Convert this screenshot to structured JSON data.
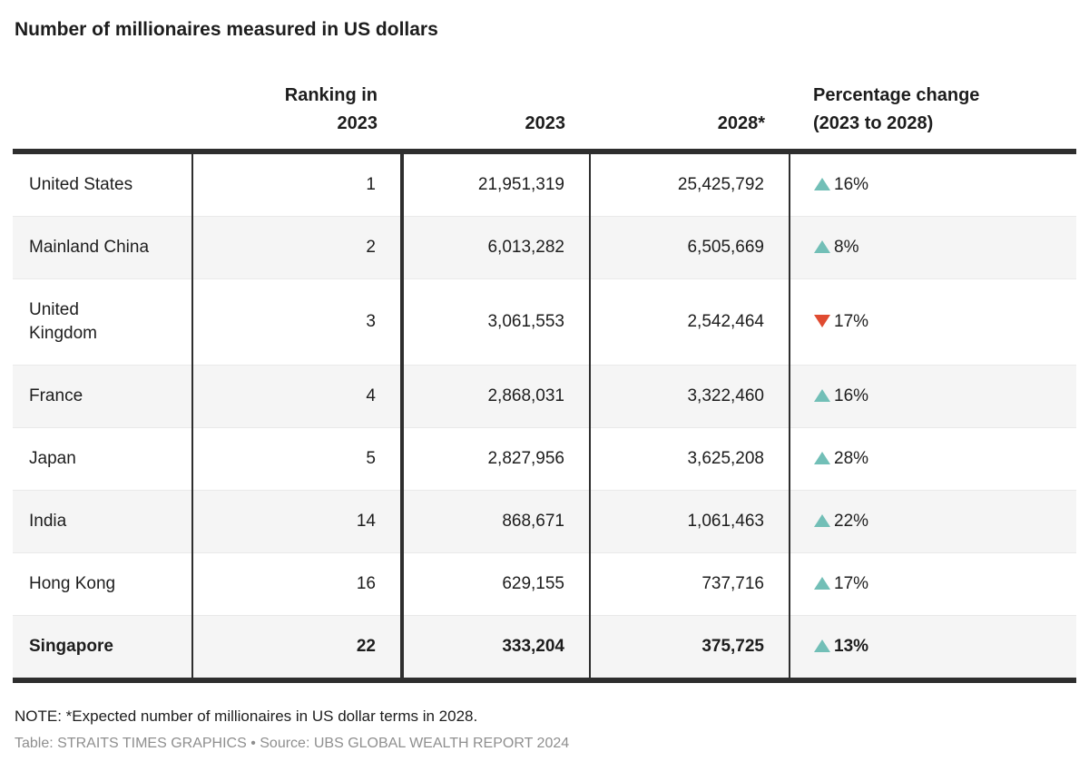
{
  "title": "Number of millionaires measured in US dollars",
  "colors": {
    "increase": "#72bfb7",
    "decrease": "#e04b31",
    "row_alt_background": "#f5f5f5",
    "border_dark": "#2e2e2e",
    "text": "#1d1d1d",
    "credit_text": "#8f8f8f"
  },
  "chart_data": {
    "type": "table",
    "title": "Number of millionaires measured in US dollars",
    "columns": [
      {
        "label": "",
        "align": "left"
      },
      {
        "label": "Ranking in\n2023",
        "align": "right"
      },
      {
        "label": "2023",
        "align": "right"
      },
      {
        "label": "2028*",
        "align": "right"
      },
      {
        "label": "Percentage change\n(2023 to 2028)",
        "align": "left"
      }
    ],
    "rows": [
      {
        "country": "United States",
        "ranking_2023": "1",
        "millionaires_2023": "21,951,319",
        "millionaires_2028": "25,425,792",
        "percent_change": "16%",
        "direction": "up",
        "highlight": false
      },
      {
        "country": "Mainland China",
        "ranking_2023": "2",
        "millionaires_2023": "6,013,282",
        "millionaires_2028": "6,505,669",
        "percent_change": "8%",
        "direction": "up",
        "highlight": false
      },
      {
        "country": "United Kingdom",
        "country_display": "United\nKingdom",
        "ranking_2023": "3",
        "millionaires_2023": "3,061,553",
        "millionaires_2028": "2,542,464",
        "percent_change": "17%",
        "direction": "down",
        "highlight": false
      },
      {
        "country": "France",
        "ranking_2023": "4",
        "millionaires_2023": "2,868,031",
        "millionaires_2028": "3,322,460",
        "percent_change": "16%",
        "direction": "up",
        "highlight": false
      },
      {
        "country": "Japan",
        "ranking_2023": "5",
        "millionaires_2023": "2,827,956",
        "millionaires_2028": "3,625,208",
        "percent_change": "28%",
        "direction": "up",
        "highlight": false
      },
      {
        "country": "India",
        "ranking_2023": "14",
        "millionaires_2023": "868,671",
        "millionaires_2028": "1,061,463",
        "percent_change": "22%",
        "direction": "up",
        "highlight": false
      },
      {
        "country": "Hong Kong",
        "ranking_2023": "16",
        "millionaires_2023": "629,155",
        "millionaires_2028": "737,716",
        "percent_change": "17%",
        "direction": "up",
        "highlight": false
      },
      {
        "country": "Singapore",
        "ranking_2023": "22",
        "millionaires_2023": "333,204",
        "millionaires_2028": "375,725",
        "percent_change": "13%",
        "direction": "up",
        "highlight": true
      }
    ]
  },
  "footer": {
    "note": "NOTE: *Expected number of millionaires in US dollar terms in 2028.",
    "credit": "Table: STRAITS TIMES GRAPHICS • Source: UBS GLOBAL WEALTH REPORT 2024"
  }
}
